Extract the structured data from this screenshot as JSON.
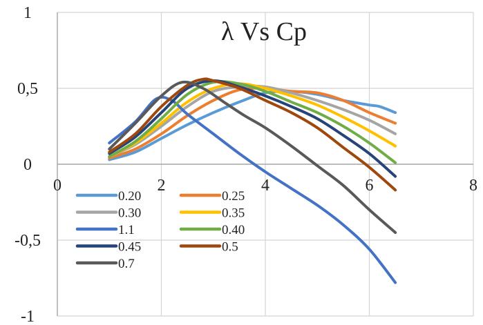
{
  "chart_data": {
    "type": "line",
    "title": "λ Vs Cp",
    "xlabel": "",
    "ylabel": "",
    "xlim": [
      0,
      8
    ],
    "ylim": [
      -1,
      1
    ],
    "x_ticks": [
      0,
      2,
      4,
      6,
      8
    ],
    "y_ticks": [
      1,
      0.5,
      0,
      -0.5,
      -1
    ],
    "x_tick_labels": [
      "0",
      "2",
      "4",
      "6",
      "8"
    ],
    "y_tick_labels": [
      "1",
      "0,5",
      "0",
      "-0,5",
      "-1"
    ],
    "grid": true,
    "legend_position": "lower-left",
    "series": [
      {
        "name": "0.20",
        "color": "#5B9BD5",
        "x": [
          1,
          1.5,
          2,
          2.5,
          3,
          3.5,
          4,
          4.5,
          5,
          5.5,
          6,
          6.2,
          6.5
        ],
        "y": [
          0.03,
          0.08,
          0.17,
          0.26,
          0.34,
          0.41,
          0.47,
          0.48,
          0.46,
          0.42,
          0.39,
          0.38,
          0.34
        ]
      },
      {
        "name": "0.25",
        "color": "#ED7D31",
        "x": [
          1,
          1.5,
          2,
          2.5,
          3,
          3.5,
          4,
          4.5,
          5,
          5.5,
          6,
          6.5
        ],
        "y": [
          0.04,
          0.1,
          0.2,
          0.32,
          0.42,
          0.49,
          0.5,
          0.48,
          0.47,
          0.42,
          0.34,
          0.27
        ]
      },
      {
        "name": "0.30",
        "color": "#A5A5A5",
        "x": [
          1,
          1.5,
          2,
          2.5,
          3,
          3.5,
          4,
          4.5,
          5,
          5.5,
          6,
          6.5
        ],
        "y": [
          0.05,
          0.13,
          0.25,
          0.38,
          0.48,
          0.51,
          0.51,
          0.47,
          0.42,
          0.36,
          0.29,
          0.2
        ]
      },
      {
        "name": "0.35",
        "color": "#FFC000",
        "x": [
          1,
          1.5,
          2,
          2.5,
          3,
          3.5,
          4,
          4.5,
          5,
          5.5,
          6,
          6.5
        ],
        "y": [
          0.05,
          0.14,
          0.27,
          0.41,
          0.5,
          0.53,
          0.5,
          0.45,
          0.39,
          0.31,
          0.22,
          0.12
        ]
      },
      {
        "name": "1.1",
        "color": "#4472C4",
        "x": [
          1,
          1.5,
          1.9,
          2.2,
          2.5,
          3,
          3.5,
          4,
          4.5,
          5,
          5.5,
          6,
          6.5
        ],
        "y": [
          0.14,
          0.28,
          0.43,
          0.42,
          0.33,
          0.2,
          0.07,
          -0.05,
          -0.16,
          -0.27,
          -0.4,
          -0.56,
          -0.78
        ]
      },
      {
        "name": "0.40",
        "color": "#70AD47",
        "x": [
          1,
          1.5,
          2,
          2.5,
          3,
          3.5,
          4,
          4.5,
          5,
          5.5,
          6,
          6.5
        ],
        "y": [
          0.05,
          0.15,
          0.3,
          0.46,
          0.54,
          0.53,
          0.48,
          0.41,
          0.34,
          0.25,
          0.14,
          0.01
        ]
      },
      {
        "name": "0.45",
        "color": "#264478",
        "x": [
          1,
          1.5,
          2,
          2.5,
          3,
          3.5,
          4,
          4.5,
          5,
          5.5,
          6,
          6.5
        ],
        "y": [
          0.07,
          0.18,
          0.34,
          0.5,
          0.55,
          0.51,
          0.45,
          0.38,
          0.3,
          0.19,
          0.07,
          -0.08
        ]
      },
      {
        "name": "0.5",
        "color": "#9E480E",
        "x": [
          1,
          1.5,
          2,
          2.5,
          2.8,
          3,
          3.5,
          4,
          4.5,
          5,
          5.5,
          6,
          6.5
        ],
        "y": [
          0.08,
          0.2,
          0.38,
          0.52,
          0.56,
          0.55,
          0.5,
          0.42,
          0.34,
          0.24,
          0.11,
          -0.02,
          -0.17
        ]
      },
      {
        "name": "0.7",
        "color": "#595959",
        "x": [
          1,
          1.5,
          2,
          2.4,
          2.8,
          3.2,
          3.6,
          4,
          4.5,
          5,
          5.5,
          6,
          6.5
        ],
        "y": [
          0.1,
          0.27,
          0.45,
          0.54,
          0.5,
          0.41,
          0.32,
          0.24,
          0.12,
          -0.01,
          -0.14,
          -0.3,
          -0.45
        ]
      }
    ],
    "legend_columns": [
      [
        "0.20",
        "0.30",
        "1.1",
        "0.45",
        "0.7"
      ],
      [
        "0.25",
        "0.35",
        "0.40",
        "0.5"
      ]
    ]
  }
}
